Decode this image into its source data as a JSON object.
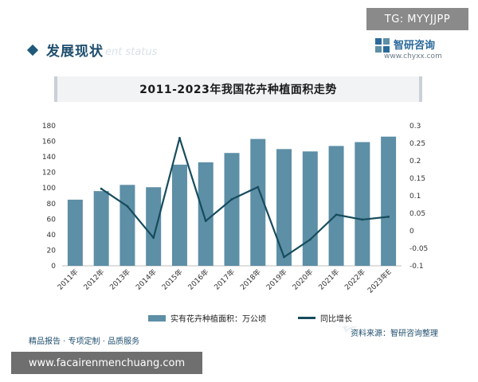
{
  "header": {
    "section_title": "发展现状",
    "section_subtitle": "ent status",
    "brand_name": "智研咨询",
    "brand_url": "www.chyxx.com"
  },
  "overlay": {
    "tg_badge": "TG: MYYJJPP",
    "site_url": "www.facairenmenchuang.com"
  },
  "footer": {
    "left_text": "精品报告 · 专项定制 · 品质服务",
    "source_text": "资料来源：智研咨询整理"
  },
  "watermark_text": "智研咨询",
  "chart_data": {
    "type": "bar",
    "title": "2011-2023年我国花卉种植面积走势",
    "categories": [
      "2011年",
      "2012年",
      "2013年",
      "2014年",
      "2015年",
      "2016年",
      "2017年",
      "2018年",
      "2019年",
      "2020年",
      "2021年",
      "2022年",
      "2023年E"
    ],
    "series": [
      {
        "name": "实有花卉种植面积：万公顷",
        "type": "bar",
        "axis": "left",
        "color": "#5d8fa6",
        "values": [
          85,
          96,
          104,
          101,
          130,
          133,
          145,
          163,
          150,
          147,
          154,
          159,
          166
        ]
      },
      {
        "name": "同比增长",
        "type": "line",
        "axis": "right",
        "color": "#164c5c",
        "values": [
          null,
          0.12,
          0.07,
          -0.02,
          0.265,
          0.028,
          0.09,
          0.125,
          -0.075,
          -0.025,
          0.046,
          0.032,
          0.04
        ]
      }
    ],
    "y_left": {
      "min": 0,
      "max": 180,
      "ticks": [
        0,
        20,
        40,
        60,
        80,
        100,
        120,
        140,
        160,
        180
      ]
    },
    "y_right": {
      "min": -0.1,
      "max": 0.3,
      "tick_labels": [
        "-0.1",
        "-0.05",
        "0",
        "0.05",
        "0.1",
        "0.15",
        "0.2",
        "0.25",
        "0.3"
      ],
      "ticks": [
        -0.1,
        -0.05,
        0,
        0.05,
        0.1,
        0.15,
        0.2,
        0.25,
        0.3
      ]
    },
    "grid": false,
    "legend": "bottom"
  }
}
